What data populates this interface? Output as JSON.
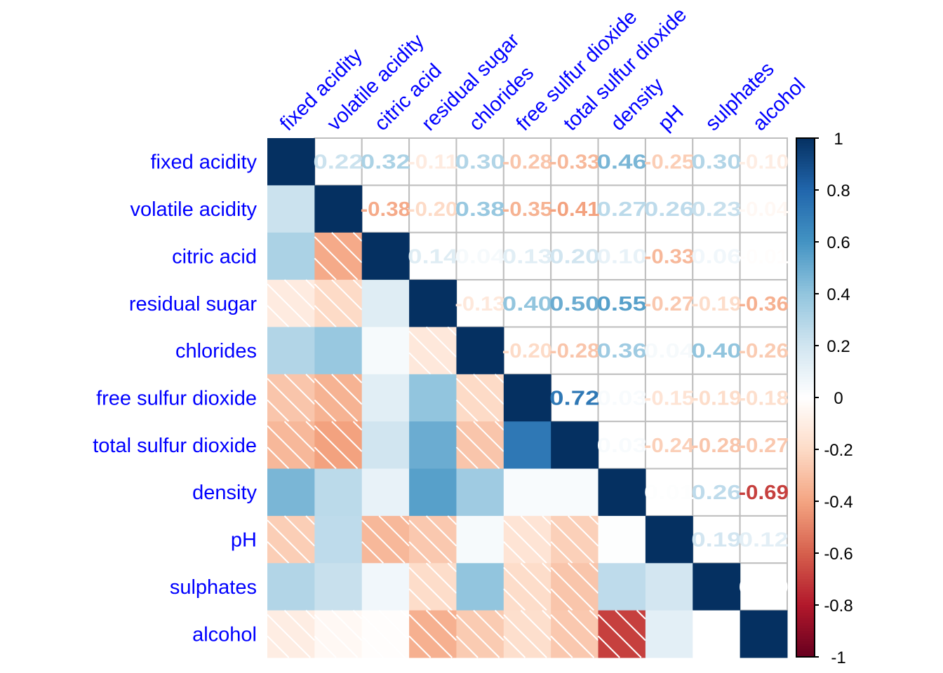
{
  "chart_data": {
    "type": "heatmap",
    "variables": [
      "fixed acidity",
      "volatile acidity",
      "citric acid",
      "residual sugar",
      "chlorides",
      "free sulfur dioxide",
      "total sulfur dioxide",
      "density",
      "pH",
      "sulphates",
      "alcohol"
    ],
    "matrix": [
      [
        1,
        0.22,
        0.32,
        -0.11,
        0.3,
        -0.28,
        -0.33,
        0.46,
        -0.25,
        0.3,
        -0.1
      ],
      [
        0.22,
        1,
        -0.38,
        -0.2,
        0.38,
        -0.35,
        -0.41,
        0.27,
        0.26,
        0.23,
        -0.04
      ],
      [
        0.32,
        -0.38,
        1,
        0.14,
        0.04,
        0.13,
        0.2,
        0.1,
        -0.33,
        0.06,
        -0.01
      ],
      [
        -0.11,
        -0.2,
        0.14,
        1,
        -0.13,
        0.4,
        0.5,
        0.55,
        -0.27,
        -0.19,
        -0.36
      ],
      [
        0.3,
        0.38,
        0.04,
        -0.13,
        1,
        -0.2,
        -0.28,
        0.36,
        0.04,
        0.4,
        -0.26
      ],
      [
        -0.28,
        -0.35,
        0.13,
        0.4,
        -0.2,
        1,
        0.72,
        0.03,
        -0.15,
        -0.19,
        -0.18
      ],
      [
        -0.33,
        -0.41,
        0.2,
        0.5,
        -0.28,
        0.72,
        1,
        0.03,
        -0.24,
        -0.28,
        -0.27
      ],
      [
        0.46,
        0.27,
        0.1,
        0.55,
        0.36,
        0.03,
        0.03,
        1,
        0.01,
        0.26,
        -0.69
      ],
      [
        -0.25,
        0.26,
        -0.33,
        -0.27,
        0.04,
        -0.15,
        -0.24,
        0.01,
        1,
        0.19,
        0.12
      ],
      [
        0.3,
        0.23,
        0.06,
        -0.19,
        0.4,
        -0.19,
        -0.28,
        0.26,
        0.19,
        1,
        0.0
      ],
      [
        -0.1,
        -0.04,
        -0.01,
        -0.36,
        -0.26,
        -0.18,
        -0.27,
        -0.69,
        0.12,
        0.0,
        1
      ]
    ],
    "upper": "numbers",
    "lower": "shaded squares, negative values hatched",
    "colorscale": [
      "#67001F",
      "#B2182B",
      "#D6604D",
      "#F4A582",
      "#FDDBC7",
      "#FFFFFF",
      "#D1E5F0",
      "#92C5DE",
      "#4393C3",
      "#2166AC",
      "#053061"
    ],
    "label_color": "#0000FF",
    "colorbar": {
      "range": [
        -1,
        1
      ],
      "ticks": [
        "1",
        "0.8",
        "0.6",
        "0.4",
        "0.2",
        "0",
        "-0.2",
        "-0.4",
        "-0.6",
        "-0.8",
        "-1"
      ]
    }
  }
}
